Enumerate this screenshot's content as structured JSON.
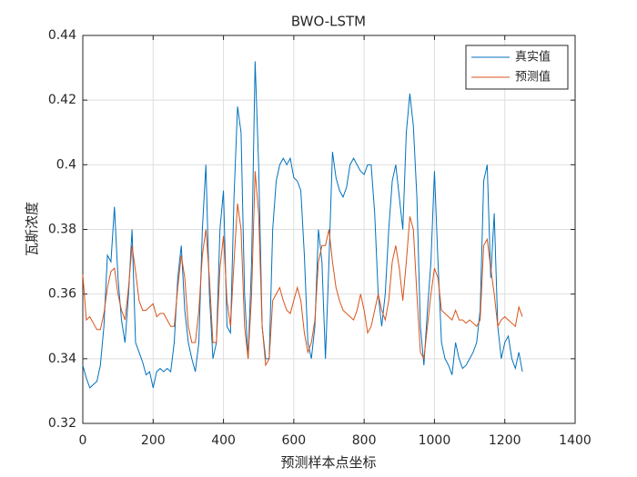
{
  "chart_data": {
    "type": "line",
    "title": "BWO-LSTM",
    "xlabel": "预测样本点坐标",
    "ylabel": "瓦斯浓度",
    "x": [
      0,
      10,
      20,
      30,
      40,
      50,
      60,
      70,
      80,
      90,
      100,
      110,
      120,
      130,
      140,
      150,
      160,
      170,
      180,
      190,
      200,
      210,
      220,
      230,
      240,
      250,
      260,
      270,
      280,
      290,
      300,
      310,
      320,
      330,
      340,
      350,
      360,
      370,
      380,
      390,
      400,
      410,
      420,
      430,
      440,
      450,
      460,
      470,
      480,
      490,
      500,
      510,
      520,
      530,
      540,
      550,
      560,
      570,
      580,
      590,
      600,
      610,
      620,
      630,
      640,
      650,
      660,
      670,
      680,
      690,
      700,
      710,
      720,
      730,
      740,
      750,
      760,
      770,
      780,
      790,
      800,
      810,
      820,
      830,
      840,
      850,
      860,
      870,
      880,
      890,
      900,
      910,
      920,
      930,
      940,
      950,
      960,
      970,
      980,
      990,
      1000,
      1010,
      1020,
      1030,
      1040,
      1050,
      1060,
      1070,
      1080,
      1090,
      1100,
      1110,
      1120,
      1130,
      1140,
      1150,
      1160,
      1170,
      1180,
      1190,
      1200,
      1210,
      1220,
      1230,
      1240,
      1250
    ],
    "series": [
      {
        "name": "真实值",
        "color": "#0072BD",
        "values": [
          0.338,
          0.334,
          0.331,
          0.332,
          0.333,
          0.338,
          0.35,
          0.372,
          0.37,
          0.387,
          0.365,
          0.352,
          0.345,
          0.36,
          0.38,
          0.345,
          0.342,
          0.339,
          0.335,
          0.336,
          0.331,
          0.336,
          0.337,
          0.336,
          0.337,
          0.336,
          0.345,
          0.365,
          0.375,
          0.355,
          0.345,
          0.34,
          0.336,
          0.345,
          0.38,
          0.4,
          0.36,
          0.34,
          0.345,
          0.38,
          0.392,
          0.35,
          0.348,
          0.39,
          0.418,
          0.41,
          0.36,
          0.34,
          0.37,
          0.432,
          0.4,
          0.35,
          0.34,
          0.34,
          0.38,
          0.395,
          0.4,
          0.402,
          0.4,
          0.402,
          0.396,
          0.395,
          0.392,
          0.372,
          0.345,
          0.34,
          0.35,
          0.38,
          0.37,
          0.34,
          0.37,
          0.404,
          0.396,
          0.392,
          0.39,
          0.393,
          0.4,
          0.402,
          0.4,
          0.398,
          0.397,
          0.4,
          0.4,
          0.385,
          0.36,
          0.35,
          0.36,
          0.38,
          0.395,
          0.4,
          0.39,
          0.38,
          0.41,
          0.422,
          0.412,
          0.39,
          0.35,
          0.338,
          0.355,
          0.37,
          0.398,
          0.37,
          0.345,
          0.34,
          0.338,
          0.335,
          0.345,
          0.34,
          0.337,
          0.338,
          0.34,
          0.342,
          0.345,
          0.355,
          0.395,
          0.4,
          0.365,
          0.385,
          0.35,
          0.34,
          0.345,
          0.347,
          0.34,
          0.337,
          0.342,
          0.336
        ]
      },
      {
        "name": "预测值",
        "color": "#D95319",
        "values": [
          0.366,
          0.352,
          0.353,
          0.351,
          0.349,
          0.349,
          0.354,
          0.362,
          0.367,
          0.368,
          0.36,
          0.355,
          0.352,
          0.362,
          0.375,
          0.367,
          0.358,
          0.355,
          0.355,
          0.356,
          0.357,
          0.353,
          0.354,
          0.354,
          0.352,
          0.35,
          0.35,
          0.362,
          0.372,
          0.365,
          0.35,
          0.345,
          0.345,
          0.355,
          0.372,
          0.38,
          0.365,
          0.345,
          0.345,
          0.368,
          0.378,
          0.358,
          0.35,
          0.37,
          0.388,
          0.38,
          0.35,
          0.34,
          0.36,
          0.398,
          0.385,
          0.35,
          0.338,
          0.34,
          0.358,
          0.36,
          0.362,
          0.358,
          0.355,
          0.354,
          0.358,
          0.362,
          0.358,
          0.348,
          0.342,
          0.345,
          0.352,
          0.37,
          0.375,
          0.375,
          0.38,
          0.37,
          0.362,
          0.358,
          0.355,
          0.354,
          0.353,
          0.352,
          0.355,
          0.36,
          0.355,
          0.348,
          0.35,
          0.355,
          0.36,
          0.355,
          0.352,
          0.358,
          0.37,
          0.375,
          0.368,
          0.358,
          0.37,
          0.384,
          0.38,
          0.36,
          0.342,
          0.34,
          0.35,
          0.36,
          0.368,
          0.365,
          0.355,
          0.354,
          0.353,
          0.352,
          0.355,
          0.352,
          0.352,
          0.351,
          0.352,
          0.351,
          0.35,
          0.352,
          0.375,
          0.377,
          0.368,
          0.36,
          0.35,
          0.352,
          0.353,
          0.352,
          0.351,
          0.35,
          0.356,
          0.353
        ]
      }
    ],
    "xlim": [
      0,
      1400
    ],
    "xticks": [
      0,
      200,
      400,
      600,
      800,
      1000,
      1200,
      1400
    ],
    "ylim": [
      0.32,
      0.44
    ],
    "yticks": [
      0.32,
      0.34,
      0.36,
      0.38,
      0.4,
      0.42,
      0.44
    ],
    "grid": true,
    "legend": "northeast"
  }
}
